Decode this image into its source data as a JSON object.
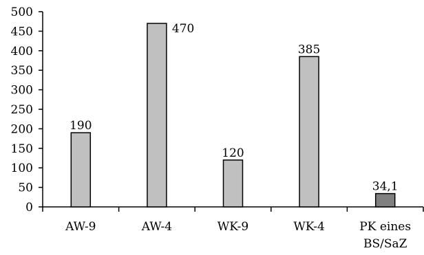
{
  "chart_data": {
    "type": "bar",
    "title": "",
    "xlabel": "",
    "ylabel": "",
    "ylim": [
      0,
      500
    ],
    "yticks": [
      0,
      50,
      100,
      150,
      200,
      250,
      300,
      350,
      400,
      450,
      500
    ],
    "grid": false,
    "categories": [
      [
        "AW-9"
      ],
      [
        "AW-4"
      ],
      [
        "WK-9"
      ],
      [
        "WK-4"
      ],
      [
        "PK eines",
        "BS/SaZ"
      ]
    ],
    "values": [
      190,
      470,
      120,
      385,
      34.1
    ],
    "value_labels": [
      "190",
      "470",
      "120",
      "385",
      "34,1"
    ],
    "colors": [
      "#c0c0c0",
      "#c0c0c0",
      "#c0c0c0",
      "#c0c0c0",
      "#808080"
    ]
  }
}
